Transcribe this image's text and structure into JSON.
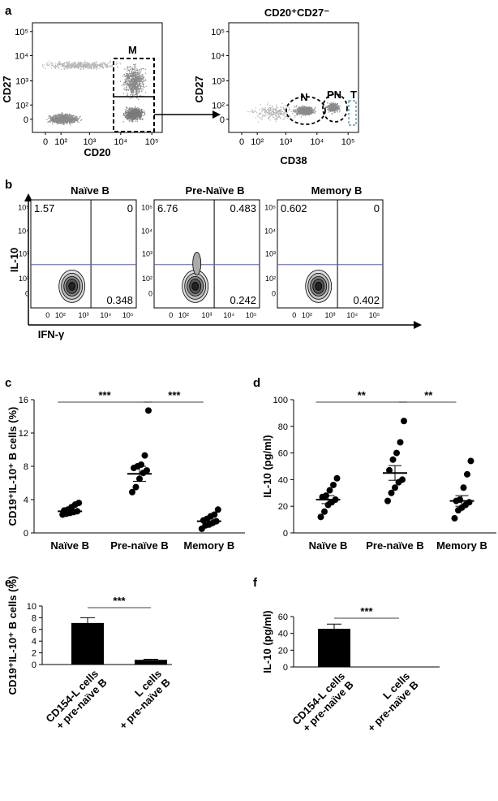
{
  "panels": {
    "a": {
      "letter": "a",
      "left": {
        "xlabel": "CD20",
        "ylabel": "CD27",
        "gate_label": "M",
        "xticks": [
          "0",
          "10²",
          "10³",
          "10⁴",
          "10⁵"
        ],
        "yticks": [
          "0",
          "10²",
          "10³",
          "10⁴",
          "10⁵"
        ]
      },
      "right": {
        "title": "CD20⁺CD27⁻",
        "xlabel": "CD38",
        "ylabel": "CD27",
        "gate_labels": [
          "N",
          "PN",
          "T"
        ],
        "xticks": [
          "0",
          "10²",
          "10³",
          "10⁴",
          "10⁵"
        ],
        "yticks": [
          "0",
          "10²",
          "10³",
          "10⁴",
          "10⁵"
        ]
      }
    },
    "b": {
      "letter": "b",
      "xlabel": "IFN-γ",
      "ylabel": "IL-10",
      "xticks": [
        "0",
        "10²",
        "10³",
        "10⁴",
        "10⁵"
      ],
      "yticks": [
        "0",
        "10²",
        "10³",
        "10⁴",
        "10⁵"
      ],
      "plots": [
        {
          "title": "Naïve B",
          "q_ul": "1.57",
          "q_ur": "0",
          "q_lr": "0.348"
        },
        {
          "title": "Pre-Naïve B",
          "q_ul": "6.76",
          "q_ur": "0.483",
          "q_lr": "0.242"
        },
        {
          "title": "Memory B",
          "q_ul": "0.602",
          "q_ur": "0",
          "q_lr": "0.402"
        }
      ]
    }
  },
  "chart_data": [
    {
      "panel": "c",
      "type": "scatter",
      "ylabel": "CD19⁺IL-10⁺ B cells (%)",
      "categories": [
        "Naïve B",
        "Pre-naïve B",
        "Memory B"
      ],
      "ylim": [
        0,
        16
      ],
      "yticks": [
        0,
        4,
        8,
        12,
        16
      ],
      "points": [
        [
          2.2,
          2.3,
          2.4,
          2.5,
          2.6,
          2.7,
          2.8,
          3.1,
          3.4,
          3.6
        ],
        [
          4.9,
          5.5,
          6.5,
          7.2,
          7.5,
          7.8,
          8.0,
          8.2,
          9.3,
          14.7
        ],
        [
          0.5,
          0.9,
          1.0,
          1.2,
          1.4,
          1.5,
          1.7,
          2.0,
          2.2,
          2.8
        ]
      ],
      "means": [
        2.6,
        7.1,
        1.4
      ],
      "sem": [
        0.15,
        0.9,
        0.25
      ],
      "significance": [
        {
          "from": 0,
          "to": 1,
          "label": "***"
        },
        {
          "from": 1,
          "to": 2,
          "label": "***"
        }
      ]
    },
    {
      "panel": "d",
      "type": "scatter",
      "ylabel": "IL-10 (pg/ml)",
      "categories": [
        "Naïve B",
        "Pre-naïve B",
        "Memory B"
      ],
      "ylim": [
        0,
        100
      ],
      "yticks": [
        0,
        20,
        40,
        60,
        80,
        100
      ],
      "points": [
        [
          12,
          16,
          21,
          23,
          25,
          27,
          28,
          32,
          36,
          41
        ],
        [
          24,
          30,
          34,
          38,
          40,
          47,
          55,
          60,
          68,
          84
        ],
        [
          11,
          17,
          19,
          21,
          23,
          24,
          25,
          34,
          44,
          54
        ]
      ],
      "means": [
        25,
        45,
        24
      ],
      "sem": [
        3,
        5.5,
        4
      ],
      "significance": [
        {
          "from": 0,
          "to": 1,
          "label": "**"
        },
        {
          "from": 1,
          "to": 2,
          "label": "**"
        }
      ]
    },
    {
      "panel": "e",
      "type": "bar",
      "ylabel": "CD19⁺IL-10⁺ B cells (%)",
      "categories": [
        "CD154-L cells\n+ pre-naïve B",
        "L cells\n+ pre-naïve B"
      ],
      "values": [
        7.1,
        0.8
      ],
      "errors": [
        0.9,
        0.1
      ],
      "ylim": [
        0,
        10
      ],
      "yticks": [
        0,
        2,
        4,
        6,
        8,
        10
      ],
      "significance": [
        {
          "from": 0,
          "to": 1,
          "label": "***"
        }
      ]
    },
    {
      "panel": "f",
      "type": "bar",
      "ylabel": "IL-10 (pg/ml)",
      "categories": [
        "CD154-L cells\n+ pre-naïve B",
        "L cells\n+ pre-naïve B"
      ],
      "values": [
        45.5,
        0
      ],
      "errors": [
        5.5,
        0
      ],
      "ylim": [
        0,
        60
      ],
      "yticks": [
        0,
        20,
        40,
        60
      ],
      "significance": [
        {
          "from": 0,
          "to": 1,
          "label": "***"
        }
      ]
    }
  ]
}
